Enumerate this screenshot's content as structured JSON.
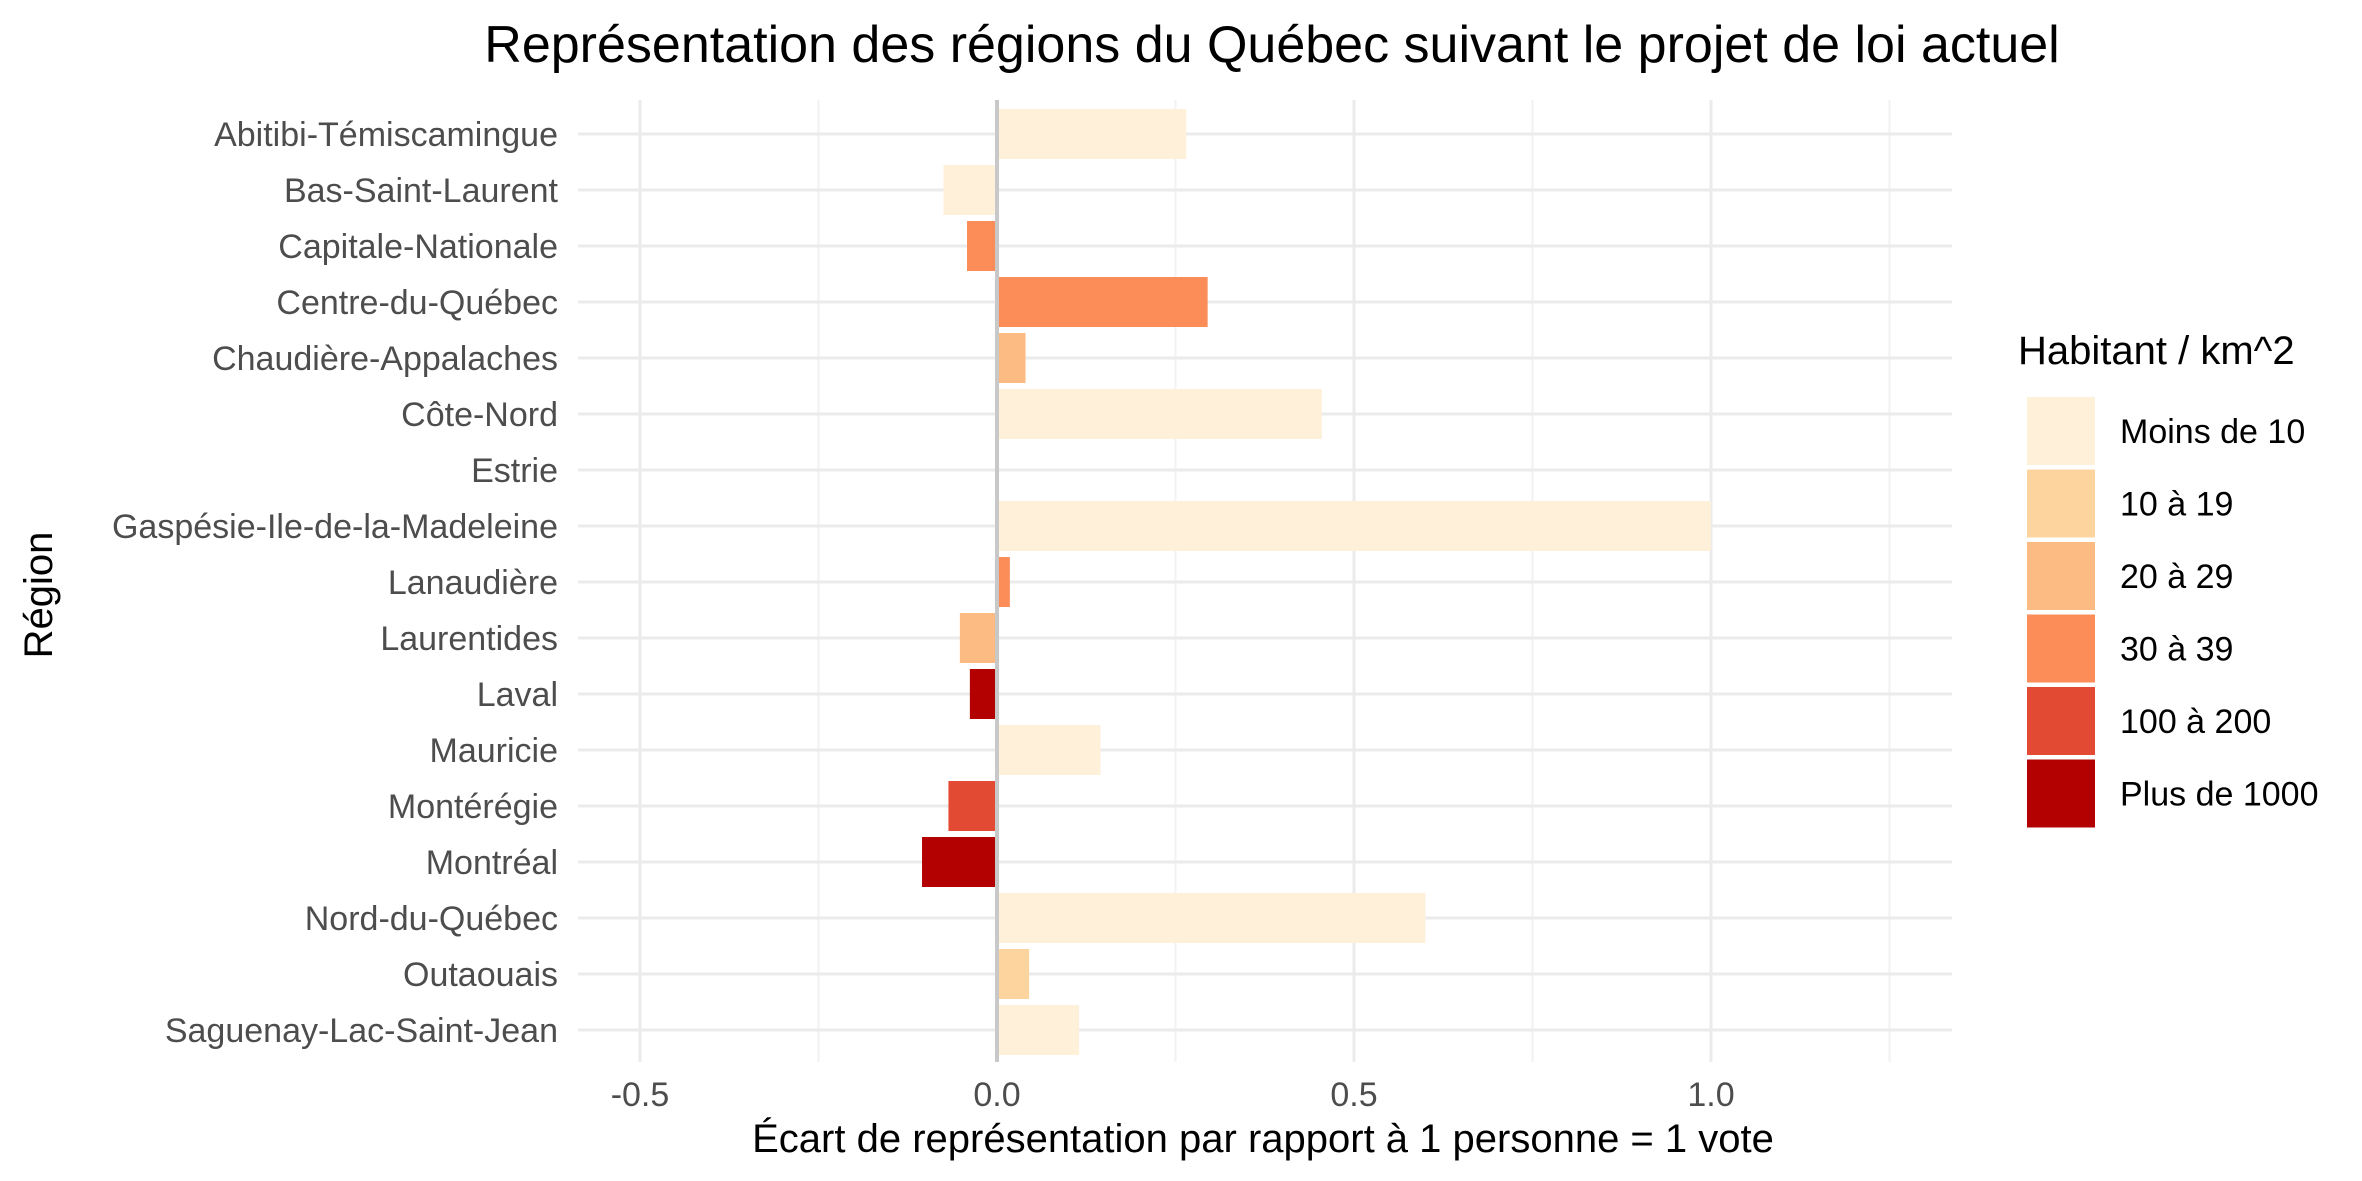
{
  "chart_data": {
    "type": "bar",
    "orientation": "horizontal",
    "title": "Représentation des régions du Québec suivant le projet de loi actuel",
    "xlabel": "Écart de représentation par rapport à 1 personne = 1 vote",
    "ylabel": "Région",
    "xlim": [
      -0.6,
      1.35
    ],
    "xticks": [
      -0.5,
      0.0,
      0.5,
      1.0
    ],
    "xtick_labels": [
      "-0.5",
      "0.0",
      "0.5",
      "1.0"
    ],
    "grid": true,
    "legend": {
      "title": "Habitant / km^2",
      "position": "right",
      "entries": [
        {
          "label": "Moins de 10",
          "color": "#FEF0D9"
        },
        {
          "label": "10 à 19",
          "color": "#FDD49E"
        },
        {
          "label": "20 à 29",
          "color": "#FDBB84"
        },
        {
          "label": "30 à 39",
          "color": "#FC8D59"
        },
        {
          "label": "100 à 200",
          "color": "#E34A33"
        },
        {
          "label": "Plus de 1000",
          "color": "#B30000"
        }
      ]
    },
    "categories": [
      "Abitibi-Témiscamingue",
      "Bas-Saint-Laurent",
      "Capitale-Nationale",
      "Centre-du-Québec",
      "Chaudière-Appalaches",
      "Côte-Nord",
      "Estrie",
      "Gaspésie-Ile-de-la-Madeleine",
      "Lanaudière",
      "Laurentides",
      "Laval",
      "Mauricie",
      "Montérégie",
      "Montréal",
      "Nord-du-Québec",
      "Outaouais",
      "Saguenay-Lac-Saint-Jean"
    ],
    "values": [
      0.265,
      -0.075,
      -0.042,
      0.295,
      0.04,
      0.455,
      0.0,
      1.0,
      0.018,
      -0.052,
      -0.038,
      0.145,
      -0.068,
      -0.105,
      0.6,
      0.045,
      0.115
    ],
    "density_class": [
      "Moins de 10",
      "Moins de 10",
      "30 à 39",
      "30 à 39",
      "20 à 29",
      "Moins de 10",
      "Moins de 10",
      "Moins de 10",
      "30 à 39",
      "20 à 29",
      "Plus de 1000",
      "Moins de 10",
      "100 à 200",
      "Plus de 1000",
      "Moins de 10",
      "10 à 19",
      "Moins de 10"
    ]
  },
  "colors": {
    "grid_major": "#EBEBEB",
    "grid_minor": "#F2F2F2",
    "zero_line": "#C8C8C8",
    "axis_text": "#4D4D4D",
    "title_text": "#000000"
  }
}
